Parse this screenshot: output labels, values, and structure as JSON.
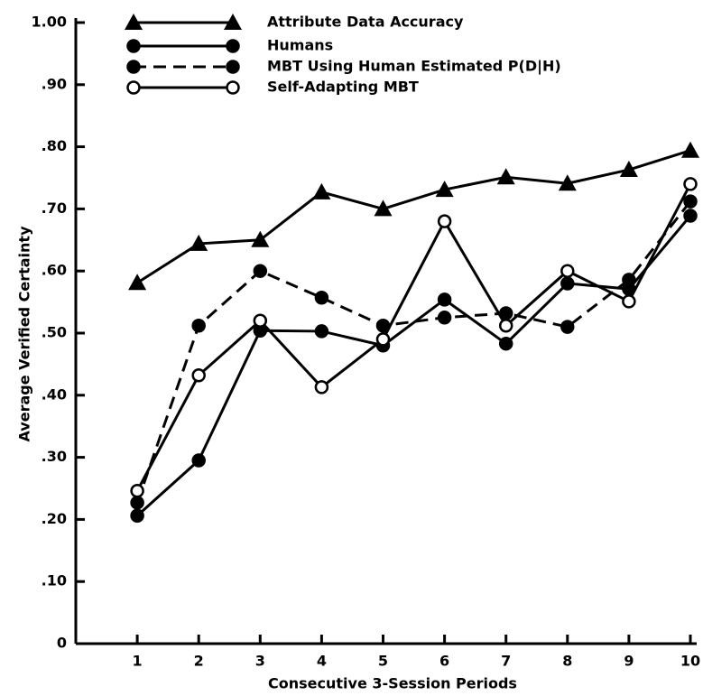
{
  "chart_data": {
    "type": "line",
    "x_label": "Consecutive 3-Session Periods",
    "y_label": "Average Verified Certainty",
    "x": [
      1,
      2,
      3,
      4,
      5,
      6,
      7,
      8,
      9,
      10
    ],
    "xlim": [
      0,
      10
    ],
    "xticks": [
      1,
      2,
      3,
      4,
      5,
      6,
      7,
      8,
      9,
      10
    ],
    "ylim": [
      0,
      1
    ],
    "yticks": [
      0,
      {
        "value": 0.1,
        "label": ".10"
      },
      {
        "value": 0.2,
        "label": ".20"
      },
      {
        "value": 0.3,
        "label": ".30"
      },
      {
        "value": 0.4,
        "label": ".40"
      },
      {
        "value": 0.5,
        "label": ".50"
      },
      {
        "value": 0.6,
        "label": ".60"
      },
      {
        "value": 0.7,
        "label": ".70"
      },
      {
        "value": 0.8,
        "label": ".80"
      },
      {
        "value": 0.9,
        "label": ".90"
      },
      {
        "value": 1,
        "label": "1.00"
      }
    ],
    "series": [
      {
        "name": "Attribute Data Accuracy",
        "color": "#000000",
        "marker": "triangle",
        "dashed": false,
        "values": [
          0.581,
          0.644,
          0.65,
          0.727,
          0.7,
          0.731,
          0.751,
          0.741,
          0.763,
          0.794
        ]
      },
      {
        "name": "Humans",
        "color": "#000000",
        "marker": "circle",
        "dashed": false,
        "values": [
          0.206,
          0.295,
          0.504,
          0.503,
          0.48,
          0.554,
          0.483,
          0.58,
          0.571,
          0.689
        ]
      },
      {
        "name": "MBT Using Human Estimated P(D|H)",
        "color": "#000000",
        "marker": "circle",
        "dashed": true,
        "values": [
          0.227,
          0.512,
          0.6,
          0.557,
          0.512,
          0.525,
          0.532,
          0.51,
          0.586,
          0.712
        ]
      },
      {
        "name": "Self-Adapting MBT",
        "color": "#000000",
        "marker": "open-circle",
        "dashed": false,
        "values": [
          0.246,
          0.432,
          0.52,
          0.413,
          0.49,
          0.68,
          0.512,
          0.6,
          0.551,
          0.74
        ]
      }
    ]
  }
}
